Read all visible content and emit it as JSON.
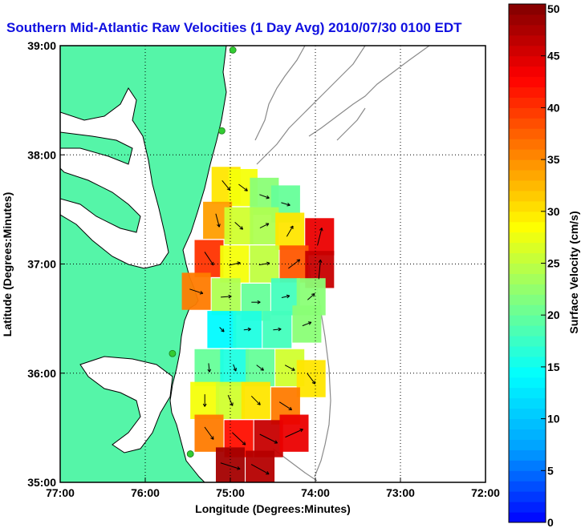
{
  "chart_data": {
    "type": "heatmap",
    "title": "Southern Mid-Atlantic Raw Velocities (1 Day Avg) 2010/07/30 0100 EDT",
    "xlabel": "Longitude (Degrees:Minutes)",
    "ylabel": "Latitude (Degrees:Minutes)",
    "xlim": [
      -77,
      -72
    ],
    "ylim": [
      35,
      39
    ],
    "x_ticks": [
      "77:00",
      "76:00",
      "75:00",
      "74:00",
      "73:00",
      "72:00"
    ],
    "y_ticks": [
      "35:00",
      "36:00",
      "37:00",
      "38:00",
      "39:00"
    ],
    "grid": true,
    "colorbar": {
      "label": "Surface Velocity (cm/s)",
      "range": [
        0,
        50
      ],
      "ticks": [
        "0",
        "5",
        "10",
        "15",
        "20",
        "25",
        "30",
        "35",
        "40",
        "45",
        "50"
      ],
      "colormap": "jet",
      "stops": [
        "#0000ff",
        "#00a0ff",
        "#00ffff",
        "#80ff80",
        "#ffff00",
        "#ff8000",
        "#ff0000",
        "#800000"
      ]
    },
    "colors": {
      "land": "#55f5a8",
      "coast": "#000000",
      "bathymetry": "#8a8a8a",
      "station": "#33cc33",
      "title": "#1010e0"
    },
    "stations": [
      {
        "lon": -74.97,
        "lat": 38.96
      },
      {
        "lon": -75.1,
        "lat": 38.22
      },
      {
        "lon": -75.68,
        "lat": 36.18
      },
      {
        "lon": -75.47,
        "lat": 35.26
      }
    ],
    "velocity_field": [
      {
        "lon": -75.05,
        "lat": 37.72,
        "speed": 30,
        "u": 18,
        "v": -22
      },
      {
        "lon": -74.85,
        "lat": 37.7,
        "speed": 28,
        "u": 20,
        "v": -15
      },
      {
        "lon": -74.6,
        "lat": 37.62,
        "speed": 22,
        "u": 22,
        "v": -8
      },
      {
        "lon": -74.35,
        "lat": 37.55,
        "speed": 20,
        "u": 20,
        "v": -6
      },
      {
        "lon": -75.15,
        "lat": 37.4,
        "speed": 34,
        "u": 8,
        "v": -30
      },
      {
        "lon": -74.9,
        "lat": 37.35,
        "speed": 26,
        "u": 18,
        "v": -16
      },
      {
        "lon": -74.6,
        "lat": 37.35,
        "speed": 24,
        "u": 20,
        "v": 10
      },
      {
        "lon": -74.3,
        "lat": 37.3,
        "speed": 30,
        "u": 14,
        "v": 24
      },
      {
        "lon": -73.95,
        "lat": 37.25,
        "speed": 44,
        "u": 10,
        "v": 40
      },
      {
        "lon": -75.25,
        "lat": 37.05,
        "speed": 40,
        "u": 20,
        "v": -30
      },
      {
        "lon": -74.95,
        "lat": 37.0,
        "speed": 28,
        "u": 26,
        "v": 6
      },
      {
        "lon": -74.6,
        "lat": 37.0,
        "speed": 25,
        "u": 24,
        "v": 4
      },
      {
        "lon": -74.25,
        "lat": 37.0,
        "speed": 38,
        "u": 26,
        "v": 20
      },
      {
        "lon": -73.95,
        "lat": 36.95,
        "speed": 46,
        "u": 4,
        "v": 44
      },
      {
        "lon": -75.4,
        "lat": 36.75,
        "speed": 36,
        "u": 30,
        "v": -10
      },
      {
        "lon": -75.05,
        "lat": 36.7,
        "speed": 24,
        "u": 24,
        "v": 2
      },
      {
        "lon": -74.7,
        "lat": 36.65,
        "speed": 20,
        "u": 20,
        "v": 0
      },
      {
        "lon": -74.35,
        "lat": 36.7,
        "speed": 18,
        "u": 18,
        "v": 4
      },
      {
        "lon": -74.05,
        "lat": 36.7,
        "speed": 22,
        "u": 16,
        "v": 14
      },
      {
        "lon": -75.1,
        "lat": 36.4,
        "speed": 14,
        "u": 10,
        "v": -10
      },
      {
        "lon": -74.8,
        "lat": 36.4,
        "speed": 16,
        "u": 16,
        "v": 2
      },
      {
        "lon": -74.45,
        "lat": 36.4,
        "speed": 18,
        "u": 18,
        "v": 2
      },
      {
        "lon": -74.1,
        "lat": 36.45,
        "speed": 22,
        "u": 20,
        "v": 8
      },
      {
        "lon": -75.25,
        "lat": 36.05,
        "speed": 20,
        "u": 2,
        "v": -20
      },
      {
        "lon": -74.95,
        "lat": 36.05,
        "speed": 16,
        "u": 6,
        "v": -15
      },
      {
        "lon": -74.65,
        "lat": 36.05,
        "speed": 20,
        "u": 16,
        "v": -12
      },
      {
        "lon": -74.3,
        "lat": 36.05,
        "speed": 26,
        "u": 22,
        "v": -12
      },
      {
        "lon": -74.05,
        "lat": 35.95,
        "speed": 30,
        "u": 18,
        "v": -24
      },
      {
        "lon": -75.3,
        "lat": 35.75,
        "speed": 28,
        "u": 0,
        "v": -28
      },
      {
        "lon": -75.0,
        "lat": 35.75,
        "speed": 26,
        "u": 10,
        "v": -24
      },
      {
        "lon": -74.7,
        "lat": 35.75,
        "speed": 30,
        "u": 20,
        "v": -20
      },
      {
        "lon": -74.35,
        "lat": 35.7,
        "speed": 36,
        "u": 28,
        "v": -18
      },
      {
        "lon": -75.25,
        "lat": 35.45,
        "speed": 36,
        "u": 20,
        "v": -28
      },
      {
        "lon": -74.9,
        "lat": 35.4,
        "speed": 42,
        "u": 30,
        "v": -28
      },
      {
        "lon": -74.55,
        "lat": 35.4,
        "speed": 46,
        "u": 40,
        "v": -20
      },
      {
        "lon": -74.25,
        "lat": 35.45,
        "speed": 44,
        "u": 40,
        "v": 18
      },
      {
        "lon": -75.0,
        "lat": 35.15,
        "speed": 48,
        "u": 44,
        "v": -14
      },
      {
        "lon": -74.65,
        "lat": 35.12,
        "speed": 47,
        "u": 40,
        "v": -22
      }
    ]
  }
}
